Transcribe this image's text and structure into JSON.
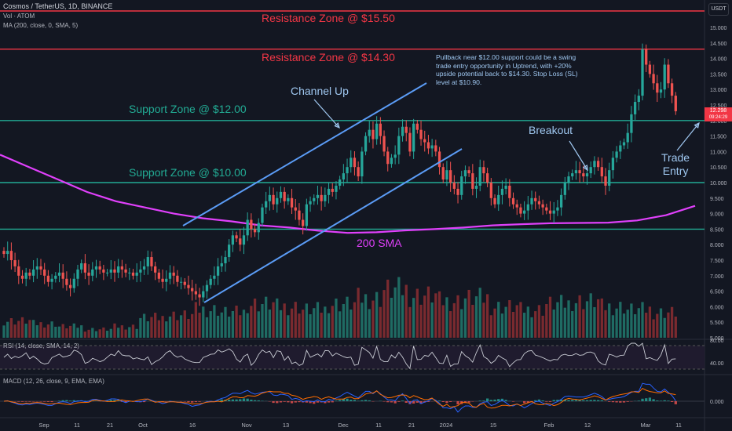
{
  "header": {
    "symbol_line": "Cosmos / TetherUS, 1D, BINANCE",
    "vol_line": "Vol · ATOM",
    "ma_line": "MA (200, close, 0, SMA, 5)",
    "rsi_line": "RSI (14, close, SMA, 14, 2)",
    "macd_line": "MACD (12, 26, close, 9, EMA, EMA)",
    "currency": "USDT"
  },
  "annotations": {
    "resistance_1550": "Resistance Zone @ $15.50",
    "resistance_1430": "Resistance Zone @ $14.30",
    "support_1200": "Support Zone @ $12.00",
    "support_1000": "Support Zone @ $10.00",
    "channel_up": "Channel Up",
    "sma_label": "200 SMA",
    "breakout": "Breakout",
    "trade_entry": "Trade\nEntry",
    "note": "Pullback near $12.00 support could be a swing trade entry opportunity in Uptrend, with +20% upside potential back to $14.30. Stop Loss (SL) level at $10.90."
  },
  "price_tag": {
    "price": "12.298",
    "countdown": "09:24:29"
  },
  "colors": {
    "up": "#26a69a",
    "down": "#ef5350",
    "resistance": "#f23645",
    "support": "#22ab94",
    "channel": "#5b9cf6",
    "sma": "#e040fb",
    "background": "#131722"
  },
  "chart_data": {
    "type": "candlestick",
    "price_axis": {
      "min": 5.0,
      "max": 15.5,
      "ticks": [
        "15.000",
        "14.500",
        "14.000",
        "13.500",
        "13.000",
        "12.500",
        "12.000",
        "11.500",
        "11.000",
        "10.500",
        "10.000",
        "9.500",
        "9.000",
        "8.500",
        "8.000",
        "7.500",
        "7.000",
        "6.500",
        "6.000",
        "5.500",
        "5.000"
      ]
    },
    "time_axis": [
      "Sep",
      "11",
      "21",
      "Oct",
      "16",
      "Nov",
      "13",
      "Dec",
      "11",
      "21",
      "2024",
      "15",
      "Feb",
      "12",
      "Mar",
      "11"
    ],
    "levels": [
      {
        "price": 15.5,
        "kind": "resistance"
      },
      {
        "price": 14.3,
        "kind": "resistance"
      },
      {
        "price": 12.0,
        "kind": "support"
      },
      {
        "price": 10.0,
        "kind": "support"
      },
      {
        "price": 8.5,
        "kind": "support"
      }
    ],
    "close_series": [
      7.7,
      7.8,
      7.5,
      7.3,
      7.0,
      6.9,
      7.1,
      7.0,
      7.2,
      7.3,
      7.2,
      7.0,
      6.8,
      6.9,
      7.0,
      7.1,
      6.9,
      6.7,
      6.6,
      6.9,
      7.2,
      7.4,
      7.1,
      7.0,
      7.2,
      7.3,
      7.2,
      7.1,
      7.1,
      7.2,
      7.1,
      7.3,
      7.2,
      7.1,
      7.1,
      7.0,
      7.1,
      7.2,
      7.3,
      7.6,
      7.3,
      7.1,
      6.9,
      6.8,
      6.9,
      7.1,
      7.0,
      6.8,
      6.8,
      6.7,
      6.6,
      6.5,
      6.4,
      6.3,
      6.5,
      6.7,
      6.9,
      7.0,
      7.3,
      7.4,
      7.6,
      8.0,
      8.3,
      8.2,
      8.0,
      8.3,
      8.8,
      8.5,
      8.4,
      8.7,
      9.2,
      9.4,
      9.6,
      9.3,
      9.5,
      9.7,
      9.4,
      9.5,
      9.2,
      9.1,
      8.8,
      8.6,
      9.3,
      9.4,
      9.5,
      9.6,
      9.4,
      9.6,
      9.8,
      9.7,
      9.9,
      10.1,
      10.3,
      10.5,
      10.8,
      10.5,
      10.2,
      11.0,
      11.5,
      11.7,
      11.4,
      11.9,
      11.5,
      11.0,
      10.6,
      10.8,
      10.9,
      11.5,
      11.8,
      11.6,
      11.0,
      11.9,
      11.7,
      11.4,
      11.3,
      11.1,
      11.2,
      11.0,
      10.5,
      10.1,
      10.4,
      10.0,
      9.8,
      9.6,
      10.2,
      10.4,
      10.3,
      9.8,
      9.9,
      10.5,
      10.3,
      10.0,
      9.5,
      9.3,
      9.6,
      9.8,
      9.9,
      9.5,
      9.3,
      9.2,
      9.0,
      9.1,
      9.3,
      9.5,
      9.4,
      9.3,
      9.2,
      9.1,
      9.0,
      9.1,
      9.2,
      9.6,
      10.0,
      10.2,
      10.3,
      10.4,
      10.3,
      10.2,
      10.3,
      10.5,
      10.7,
      10.5,
      10.2,
      9.9,
      10.4,
      10.8,
      11.0,
      11.2,
      11.3,
      11.6,
      12.2,
      12.6,
      12.8,
      14.3,
      13.8,
      13.5,
      13.2,
      12.9,
      13.0,
      13.8,
      13.2,
      12.8,
      12.3
    ],
    "sma_200": [
      10.9,
      10.5,
      10.1,
      9.7,
      9.4,
      9.2,
      9.0,
      8.85,
      8.75,
      8.62,
      8.55,
      8.45,
      8.38,
      8.4,
      8.46,
      8.5,
      8.55,
      8.62,
      8.66,
      8.69,
      8.7,
      8.71,
      8.78,
      8.95,
      9.25
    ],
    "volume": [
      0.3,
      0.25,
      0.2,
      0.15,
      0.2,
      0.35,
      0.4,
      0.5,
      0.45,
      0.6,
      0.55,
      0.5,
      0.6,
      0.7,
      0.85,
      0.75,
      0.65,
      0.7,
      0.55,
      0.5,
      0.6,
      0.65,
      0.55,
      0.5,
      0.45
    ],
    "indicators": {
      "rsi": {
        "ticks": [
          "80.00",
          "40.00"
        ]
      },
      "macd": {
        "ticks": [
          "0.000"
        ]
      }
    }
  }
}
